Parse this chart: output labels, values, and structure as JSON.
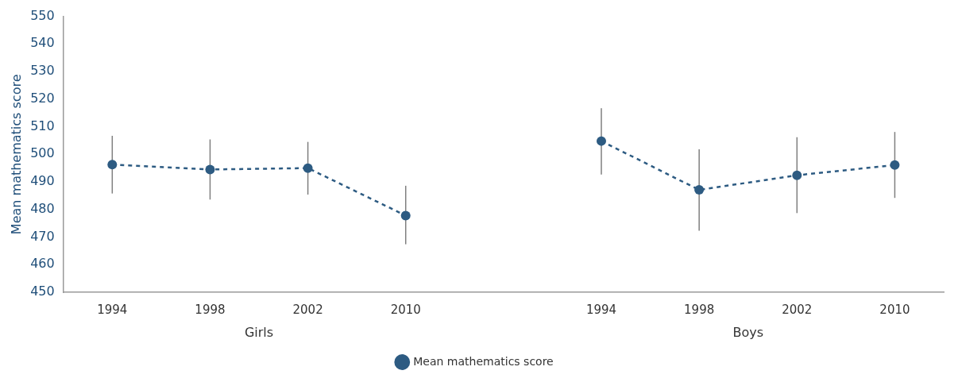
{
  "chart_data": {
    "type": "line",
    "ylabel": "Mean mathematics score",
    "categories": [
      "1994",
      "1998",
      "2002",
      "2010",
      null,
      "1994",
      "1998",
      "2002",
      "2010"
    ],
    "series": [
      {
        "name": "Mean mathematics score",
        "color": "#2d5b82",
        "values": [
          496.3,
          494.5,
          495,
          477.8,
          null,
          504.8,
          487.1,
          492.4,
          496.1
        ],
        "errors": [
          [
            485.8,
            506.7
          ],
          [
            483.6,
            505.4
          ],
          [
            485.4,
            504.5
          ],
          [
            467.4,
            488.6
          ],
          null,
          [
            492.7,
            516.7
          ],
          [
            472.3,
            501.8
          ],
          [
            478.7,
            506.2
          ],
          [
            484.2,
            508.1
          ]
        ]
      }
    ],
    "annotations": [
      "Girls",
      "Boys"
    ],
    "ylim": [
      450,
      550
    ],
    "yticks": [
      450,
      460,
      470,
      480,
      490,
      500,
      510,
      520,
      530,
      540,
      550
    ],
    "grid": false,
    "legend": "bottom",
    "marker": "circle",
    "line_style": "dashed"
  }
}
